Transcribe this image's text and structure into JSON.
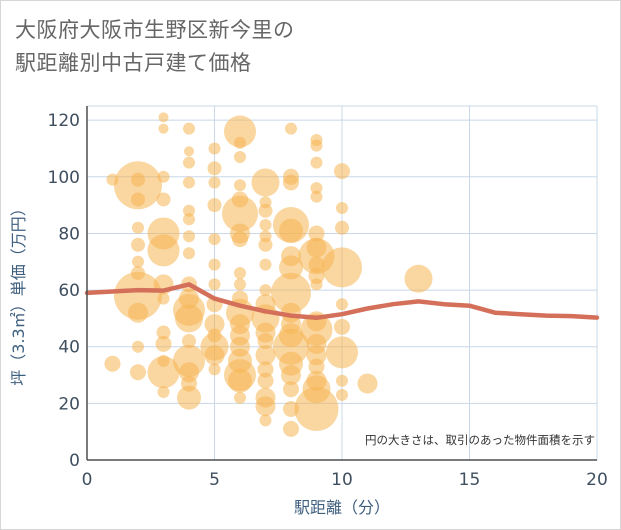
{
  "chart_data": {
    "type": "scatter",
    "title_line1": "大阪府大阪市生野区新今里の",
    "title_line2": "駅距離別中古戸建て価格",
    "xlabel": "駅距離（分）",
    "ylabel": "坪（3.3㎡）単価（万円）",
    "note": "円の大きさは、取引のあった物件面積を示す",
    "xlim": [
      0,
      20
    ],
    "ylim": [
      0,
      125
    ],
    "x_ticks": [
      "0",
      "5",
      "10",
      "15",
      "20"
    ],
    "y_ticks": [
      "0",
      "20",
      "40",
      "60",
      "80",
      "100",
      "120"
    ],
    "grid": true,
    "colors": {
      "bubble": "#f5b452",
      "line": "#d4705a",
      "grid": "#c8d8e8",
      "axis": "#4f4f4f"
    },
    "bubbles": [
      {
        "x": 1,
        "y": 99,
        "r": 6
      },
      {
        "x": 1,
        "y": 34,
        "r": 8
      },
      {
        "x": 2,
        "y": 97,
        "r": 24
      },
      {
        "x": 2,
        "y": 99,
        "r": 7
      },
      {
        "x": 2,
        "y": 92,
        "r": 7
      },
      {
        "x": 2,
        "y": 82,
        "r": 6
      },
      {
        "x": 2,
        "y": 76,
        "r": 7
      },
      {
        "x": 2,
        "y": 70,
        "r": 6
      },
      {
        "x": 2,
        "y": 66,
        "r": 7
      },
      {
        "x": 2,
        "y": 58,
        "r": 24
      },
      {
        "x": 2,
        "y": 52,
        "r": 10
      },
      {
        "x": 2,
        "y": 40,
        "r": 6
      },
      {
        "x": 2,
        "y": 31,
        "r": 8
      },
      {
        "x": 3,
        "y": 121,
        "r": 5
      },
      {
        "x": 3,
        "y": 117,
        "r": 5
      },
      {
        "x": 3,
        "y": 100,
        "r": 6
      },
      {
        "x": 3,
        "y": 92,
        "r": 7
      },
      {
        "x": 3,
        "y": 80,
        "r": 16
      },
      {
        "x": 3,
        "y": 74,
        "r": 16
      },
      {
        "x": 3,
        "y": 62,
        "r": 10
      },
      {
        "x": 3,
        "y": 57,
        "r": 6
      },
      {
        "x": 3,
        "y": 45,
        "r": 7
      },
      {
        "x": 3,
        "y": 41,
        "r": 8
      },
      {
        "x": 3,
        "y": 35,
        "r": 6
      },
      {
        "x": 3,
        "y": 31,
        "r": 16
      },
      {
        "x": 3,
        "y": 24,
        "r": 6
      },
      {
        "x": 4,
        "y": 117,
        "r": 6
      },
      {
        "x": 4,
        "y": 109,
        "r": 5
      },
      {
        "x": 4,
        "y": 105,
        "r": 6
      },
      {
        "x": 4,
        "y": 98,
        "r": 6
      },
      {
        "x": 4,
        "y": 88,
        "r": 6
      },
      {
        "x": 4,
        "y": 85,
        "r": 6
      },
      {
        "x": 4,
        "y": 79,
        "r": 6
      },
      {
        "x": 4,
        "y": 73,
        "r": 6
      },
      {
        "x": 4,
        "y": 62,
        "r": 8
      },
      {
        "x": 4,
        "y": 57,
        "r": 10
      },
      {
        "x": 4,
        "y": 53,
        "r": 16
      },
      {
        "x": 4,
        "y": 50,
        "r": 14
      },
      {
        "x": 4,
        "y": 42,
        "r": 7
      },
      {
        "x": 4,
        "y": 35,
        "r": 16
      },
      {
        "x": 4,
        "y": 31,
        "r": 10
      },
      {
        "x": 4,
        "y": 27,
        "r": 8
      },
      {
        "x": 4,
        "y": 22,
        "r": 12
      },
      {
        "x": 5,
        "y": 110,
        "r": 6
      },
      {
        "x": 5,
        "y": 103,
        "r": 7
      },
      {
        "x": 5,
        "y": 98,
        "r": 6
      },
      {
        "x": 5,
        "y": 90,
        "r": 7
      },
      {
        "x": 5,
        "y": 78,
        "r": 6
      },
      {
        "x": 5,
        "y": 69,
        "r": 6
      },
      {
        "x": 5,
        "y": 62,
        "r": 6
      },
      {
        "x": 5,
        "y": 55,
        "r": 8
      },
      {
        "x": 5,
        "y": 48,
        "r": 10
      },
      {
        "x": 5,
        "y": 44,
        "r": 7
      },
      {
        "x": 5,
        "y": 40,
        "r": 14
      },
      {
        "x": 5,
        "y": 37,
        "r": 10
      },
      {
        "x": 5,
        "y": 32,
        "r": 6
      },
      {
        "x": 6,
        "y": 116,
        "r": 16
      },
      {
        "x": 6,
        "y": 112,
        "r": 6
      },
      {
        "x": 6,
        "y": 107,
        "r": 6
      },
      {
        "x": 6,
        "y": 97,
        "r": 6
      },
      {
        "x": 6,
        "y": 92,
        "r": 8
      },
      {
        "x": 6,
        "y": 87,
        "r": 18
      },
      {
        "x": 6,
        "y": 80,
        "r": 10
      },
      {
        "x": 6,
        "y": 78,
        "r": 8
      },
      {
        "x": 6,
        "y": 66,
        "r": 6
      },
      {
        "x": 6,
        "y": 62,
        "r": 6
      },
      {
        "x": 6,
        "y": 57,
        "r": 8
      },
      {
        "x": 6,
        "y": 52,
        "r": 14
      },
      {
        "x": 6,
        "y": 48,
        "r": 10
      },
      {
        "x": 6,
        "y": 44,
        "r": 10
      },
      {
        "x": 6,
        "y": 40,
        "r": 10
      },
      {
        "x": 6,
        "y": 35,
        "r": 12
      },
      {
        "x": 6,
        "y": 30,
        "r": 16
      },
      {
        "x": 6,
        "y": 28,
        "r": 12
      },
      {
        "x": 6,
        "y": 22,
        "r": 6
      },
      {
        "x": 7,
        "y": 98,
        "r": 14
      },
      {
        "x": 7,
        "y": 91,
        "r": 6
      },
      {
        "x": 7,
        "y": 88,
        "r": 7
      },
      {
        "x": 7,
        "y": 83,
        "r": 6
      },
      {
        "x": 7,
        "y": 79,
        "r": 6
      },
      {
        "x": 7,
        "y": 76,
        "r": 7
      },
      {
        "x": 7,
        "y": 69,
        "r": 6
      },
      {
        "x": 7,
        "y": 60,
        "r": 6
      },
      {
        "x": 7,
        "y": 55,
        "r": 10
      },
      {
        "x": 7,
        "y": 50,
        "r": 14
      },
      {
        "x": 7,
        "y": 45,
        "r": 10
      },
      {
        "x": 7,
        "y": 42,
        "r": 8
      },
      {
        "x": 7,
        "y": 37,
        "r": 10
      },
      {
        "x": 7,
        "y": 32,
        "r": 8
      },
      {
        "x": 7,
        "y": 28,
        "r": 8
      },
      {
        "x": 7,
        "y": 22,
        "r": 10
      },
      {
        "x": 7,
        "y": 19,
        "r": 10
      },
      {
        "x": 7,
        "y": 14,
        "r": 6
      },
      {
        "x": 8,
        "y": 117,
        "r": 6
      },
      {
        "x": 8,
        "y": 100,
        "r": 8
      },
      {
        "x": 8,
        "y": 98,
        "r": 8
      },
      {
        "x": 8,
        "y": 83,
        "r": 18
      },
      {
        "x": 8,
        "y": 81,
        "r": 12
      },
      {
        "x": 8,
        "y": 72,
        "r": 10
      },
      {
        "x": 8,
        "y": 68,
        "r": 12
      },
      {
        "x": 8,
        "y": 59,
        "r": 20
      },
      {
        "x": 8,
        "y": 52,
        "r": 10
      },
      {
        "x": 8,
        "y": 48,
        "r": 10
      },
      {
        "x": 8,
        "y": 44,
        "r": 12
      },
      {
        "x": 8,
        "y": 40,
        "r": 18
      },
      {
        "x": 8,
        "y": 34,
        "r": 12
      },
      {
        "x": 8,
        "y": 30,
        "r": 10
      },
      {
        "x": 8,
        "y": 25,
        "r": 8
      },
      {
        "x": 8,
        "y": 18,
        "r": 8
      },
      {
        "x": 8,
        "y": 11,
        "r": 8
      },
      {
        "x": 9,
        "y": 113,
        "r": 6
      },
      {
        "x": 9,
        "y": 111,
        "r": 6
      },
      {
        "x": 9,
        "y": 105,
        "r": 6
      },
      {
        "x": 9,
        "y": 96,
        "r": 6
      },
      {
        "x": 9,
        "y": 93,
        "r": 6
      },
      {
        "x": 9,
        "y": 80,
        "r": 8
      },
      {
        "x": 9,
        "y": 75,
        "r": 10
      },
      {
        "x": 9,
        "y": 72,
        "r": 18
      },
      {
        "x": 9,
        "y": 69,
        "r": 8
      },
      {
        "x": 9,
        "y": 65,
        "r": 8
      },
      {
        "x": 9,
        "y": 62,
        "r": 6
      },
      {
        "x": 9,
        "y": 49,
        "r": 10
      },
      {
        "x": 9,
        "y": 46,
        "r": 16
      },
      {
        "x": 9,
        "y": 41,
        "r": 10
      },
      {
        "x": 9,
        "y": 37,
        "r": 10
      },
      {
        "x": 9,
        "y": 33,
        "r": 8
      },
      {
        "x": 9,
        "y": 28,
        "r": 10
      },
      {
        "x": 9,
        "y": 25,
        "r": 14
      },
      {
        "x": 9,
        "y": 18,
        "r": 22
      },
      {
        "x": 10,
        "y": 102,
        "r": 8
      },
      {
        "x": 10,
        "y": 89,
        "r": 6
      },
      {
        "x": 10,
        "y": 82,
        "r": 7
      },
      {
        "x": 10,
        "y": 68,
        "r": 20
      },
      {
        "x": 10,
        "y": 55,
        "r": 6
      },
      {
        "x": 10,
        "y": 47,
        "r": 8
      },
      {
        "x": 10,
        "y": 38,
        "r": 16
      },
      {
        "x": 10,
        "y": 28,
        "r": 6
      },
      {
        "x": 10,
        "y": 23,
        "r": 6
      },
      {
        "x": 11,
        "y": 27,
        "r": 10
      },
      {
        "x": 13,
        "y": 64,
        "r": 14
      }
    ],
    "trend": {
      "x": [
        0,
        1,
        2,
        3,
        4,
        5,
        6,
        7,
        8,
        9,
        10,
        11,
        12,
        13,
        14,
        15,
        16,
        17,
        18,
        19,
        20
      ],
      "y": [
        59,
        59.5,
        60,
        59.8,
        62,
        57,
        54.5,
        52.5,
        51,
        50.2,
        51.5,
        53.5,
        55,
        56,
        55,
        54.5,
        52,
        51.5,
        51,
        50.8,
        50.3
      ]
    }
  }
}
